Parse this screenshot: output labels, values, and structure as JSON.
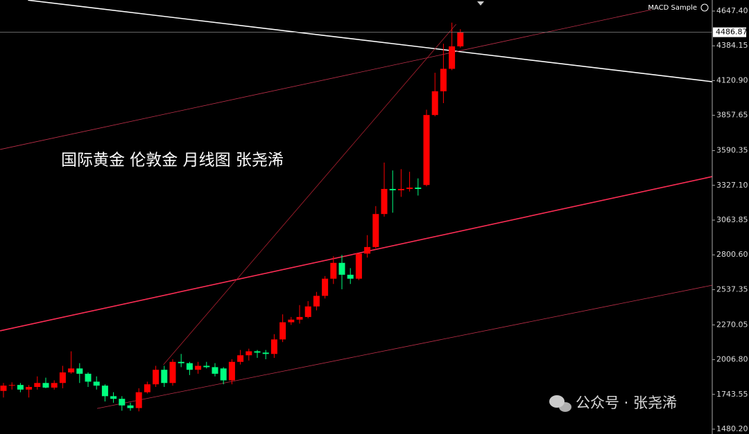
{
  "chart_data": {
    "type": "candlestick",
    "title": "国际黄金 伦敦金 月线图 张尧浠",
    "indicator_label": "MACD Sample",
    "watermark": "公众号 · 张尧浠",
    "up_color": "#ff0000",
    "down_color": "#00ff7f",
    "open": [
      1770,
      1810,
      1815,
      1780,
      1800,
      1830,
      1795,
      1830,
      1910,
      1940,
      1900,
      1840,
      1810,
      1730,
      1710,
      1660,
      1640,
      1760,
      1820,
      1930,
      1830,
      1990,
      1980,
      1930,
      1960,
      1950,
      1940,
      1850,
      1990,
      2040,
      2070,
      2060,
      2050,
      2160,
      2290,
      2310,
      2330,
      2410,
      2490,
      2620,
      2740,
      2650,
      2620,
      2810,
      2860,
      3110,
      3300,
      3290,
      3300,
      3310,
      3330,
      3860,
      4040,
      4210,
      4380
    ],
    "high": [
      1830,
      1835,
      1830,
      1815,
      1880,
      1870,
      1850,
      1960,
      2070,
      1980,
      1910,
      1880,
      1820,
      1760,
      1730,
      1680,
      1790,
      1840,
      1960,
      1960,
      2010,
      2050,
      1990,
      1990,
      1990,
      1980,
      1950,
      2010,
      2080,
      2090,
      2080,
      2080,
      2200,
      2350,
      2330,
      2420,
      2450,
      2520,
      2640,
      2790,
      2800,
      2700,
      2800,
      2950,
      3170,
      3500,
      3440,
      3450,
      3430,
      3380,
      3900,
      4180,
      4400,
      4560,
      4510
    ],
    "low": [
      1720,
      1780,
      1760,
      1720,
      1780,
      1790,
      1780,
      1790,
      1900,
      1830,
      1800,
      1780,
      1690,
      1680,
      1620,
      1620,
      1615,
      1750,
      1800,
      1800,
      1810,
      1950,
      1890,
      1900,
      1940,
      1880,
      1820,
      1820,
      1970,
      2000,
      2020,
      2010,
      2020,
      2140,
      2270,
      2280,
      2320,
      2380,
      2470,
      2580,
      2540,
      2580,
      2610,
      2780,
      2850,
      3090,
      3120,
      3240,
      3280,
      3250,
      3320,
      3850,
      3950,
      4200,
      4370
    ],
    "close": [
      1810,
      1815,
      1780,
      1800,
      1830,
      1795,
      1830,
      1910,
      1940,
      1900,
      1840,
      1810,
      1730,
      1710,
      1660,
      1640,
      1760,
      1820,
      1930,
      1830,
      1990,
      1980,
      1930,
      1960,
      1950,
      1900,
      1850,
      1990,
      2040,
      2070,
      2060,
      2050,
      2160,
      2290,
      2310,
      2330,
      2410,
      2490,
      2620,
      2740,
      2650,
      2620,
      2810,
      2860,
      3110,
      3300,
      3290,
      3300,
      3310,
      3300,
      3860,
      4040,
      4210,
      4380,
      4486.87
    ],
    "trend_lines": [
      {
        "color": "#ffffff",
        "points": [
          [
            2.9,
            4730
          ],
          [
            83.8,
            4112
          ]
        ]
      },
      {
        "color": "#ff2d55",
        "points": [
          [
            -0.4,
            2225
          ],
          [
            83.8,
            3394
          ]
        ]
      },
      {
        "color": "#c0304a",
        "points": [
          [
            -0.4,
            3599
          ],
          [
            76.6,
            4658
          ]
        ]
      },
      {
        "color": "#c0304a",
        "points": [
          [
            11.07,
            1637
          ],
          [
            83.8,
            2571
          ]
        ]
      },
      {
        "color": "#b02030",
        "points": [
          [
            18.9,
            1968
          ],
          [
            53.5,
            4548
          ]
        ]
      }
    ],
    "ylim": [
      1480.2,
      4647.4
    ],
    "yticks": [
      {
        "value": 1480.2,
        "label": "1480.20"
      },
      {
        "value": 1743.55,
        "label": "1743.55"
      },
      {
        "value": 2006.8,
        "label": "2006.80"
      },
      {
        "value": 2270.05,
        "label": "2270.05"
      },
      {
        "value": 2537.35,
        "label": "2537.35"
      },
      {
        "value": 2800.6,
        "label": "2800.60"
      },
      {
        "value": 3063.85,
        "label": "3063.85"
      },
      {
        "value": 3327.1,
        "label": "3327.10"
      },
      {
        "value": 3590.35,
        "label": "3590.35"
      },
      {
        "value": 3857.65,
        "label": "3857.65"
      },
      {
        "value": 4120.9,
        "label": "4120.90"
      },
      {
        "value": 4384.15,
        "label": "4384.15"
      },
      {
        "value": 4647.4,
        "label": "4647.40"
      }
    ]
  }
}
